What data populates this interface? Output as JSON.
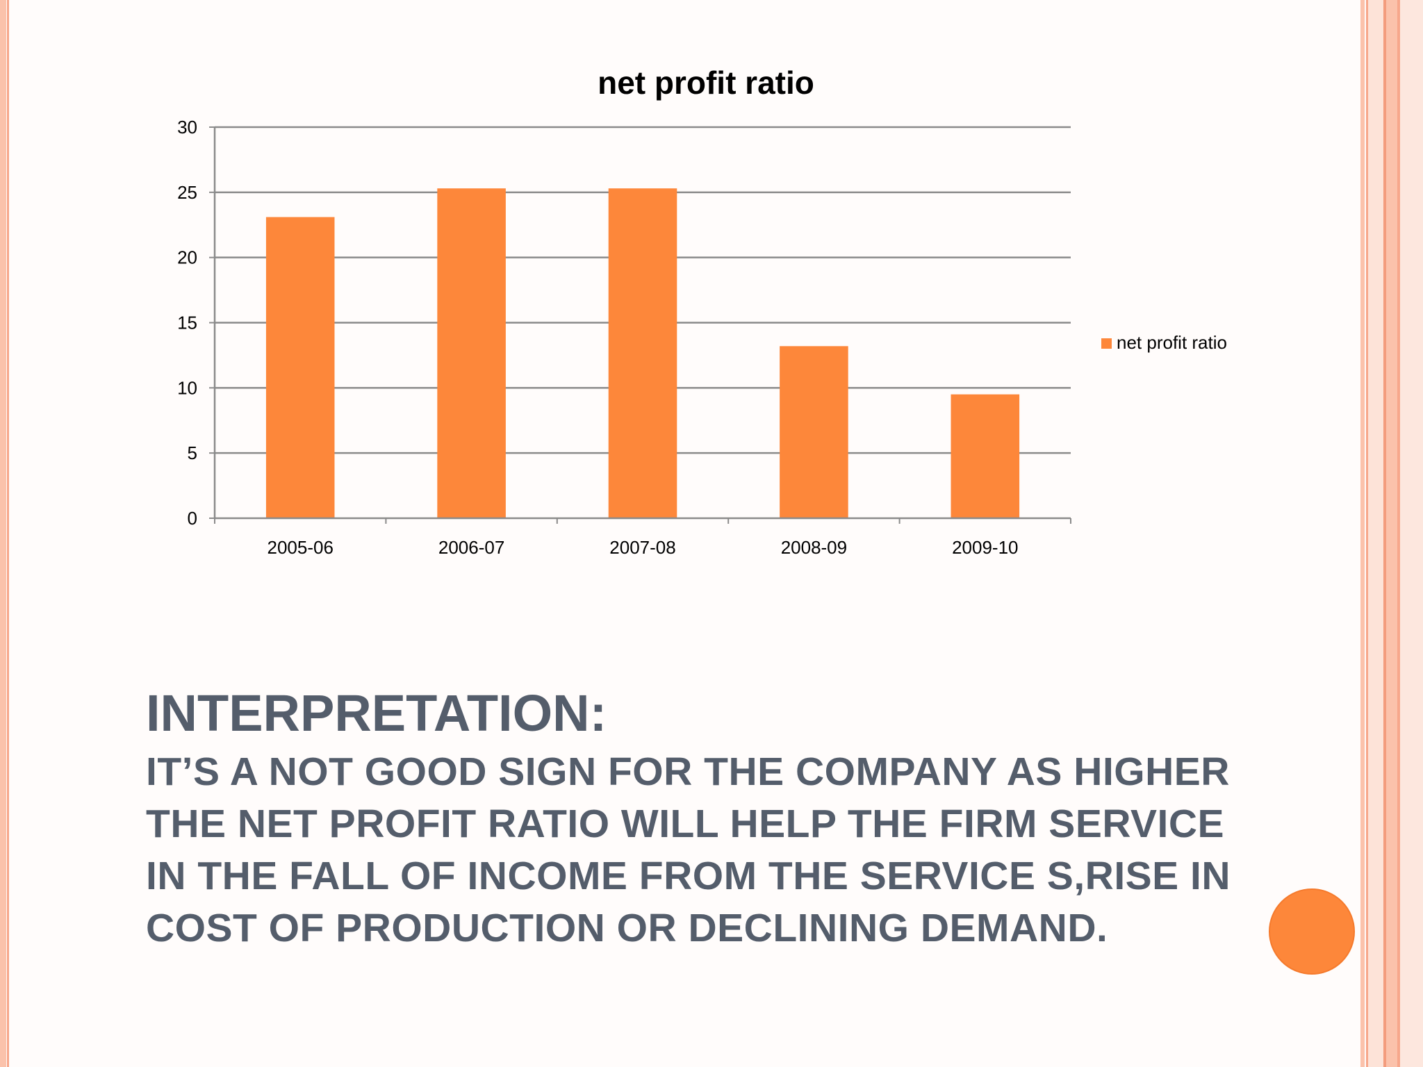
{
  "chart_data": {
    "type": "bar",
    "title": "net profit ratio",
    "categories": [
      "2005-06",
      "2006-07",
      "2007-08",
      "2008-09",
      "2009-10"
    ],
    "series": [
      {
        "name": "net profit ratio",
        "values": [
          23.1,
          25.3,
          25.3,
          13.2,
          9.5
        ]
      }
    ],
    "ylim": [
      0,
      30
    ],
    "yticks": [
      0,
      5,
      10,
      15,
      20,
      25,
      30
    ],
    "grid": true,
    "legend": "right",
    "bar_color": "#fd873a"
  },
  "interpretation": {
    "heading": "INTERPRETATION:",
    "body": "IT’S A NOT GOOD SIGN FOR THE COMPANY AS HIGHER THE NET PROFIT RATIO WILL HELP THE FIRM SERVICE IN THE FALL OF INCOME FROM THE SERVICE S,RISE IN COST OF PRODUCTION OR DECLINING DEMAND."
  },
  "colors": {
    "accent": "#fd873a",
    "text": "#545d6b",
    "border": "#fbc2ab"
  }
}
